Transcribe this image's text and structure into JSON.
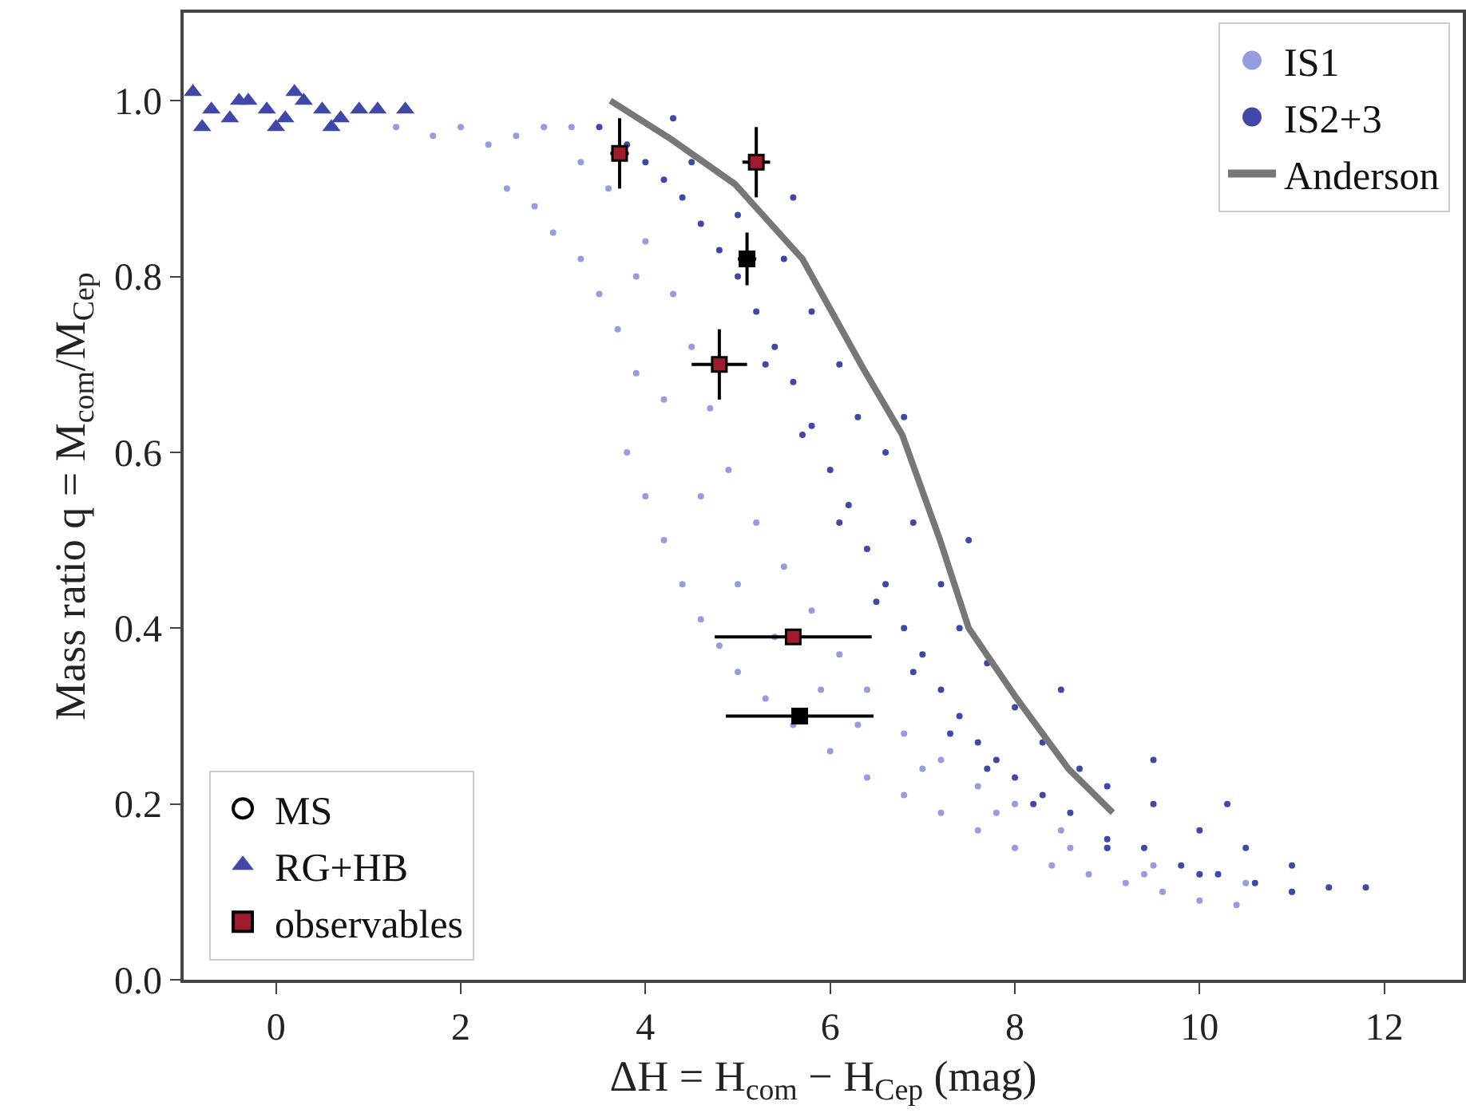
{
  "chart_data": {
    "type": "scatter",
    "xlabel": "ΔH = H$_{com}$ − H$_{Cep}$ (mag)",
    "ylabel": "Mass ratio q = M$_{com}$/M$_{Cep}$",
    "xlim": [
      -1,
      12.85
    ],
    "ylim": [
      0,
      1.1
    ],
    "xticks": [
      0,
      2,
      4,
      6,
      8,
      10,
      12
    ],
    "yticks": [
      {
        "value": 0,
        "label": "0.0"
      },
      {
        "value": 0.2,
        "label": "0.2"
      },
      {
        "value": 0.4,
        "label": "0.4"
      },
      {
        "value": 0.6,
        "label": "0.6"
      },
      {
        "value": 0.8,
        "label": "0.8"
      },
      {
        "value": 1,
        "label": "1.0"
      }
    ],
    "grid": false,
    "legend": "top right",
    "annotations": [
      "MS"
    ],
    "series": [
      {
        "name": "IS1",
        "marker": "circle",
        "color": "#959ce0",
        "x": [
          1.3,
          1.7,
          2.0,
          2.3,
          2.6,
          2.9,
          3.2,
          2.5,
          2.8,
          3.0,
          3.3,
          3.5,
          3.7,
          3.9,
          3.8,
          4.0,
          4.2,
          4.4,
          4.6,
          4.8,
          5.0,
          5.3,
          5.6,
          6.0,
          6.4,
          6.8,
          7.2,
          7.6,
          8.0,
          8.4,
          8.8,
          9.2,
          9.6,
          10.0,
          10.4,
          3.6,
          4.0,
          4.3,
          4.5,
          4.7,
          4.9,
          5.2,
          5.5,
          5.8,
          6.1,
          6.4,
          6.8,
          7.2,
          7.6,
          8.0,
          8.5,
          9.0,
          9.5,
          10.0,
          10.5,
          11.0,
          3.3,
          3.9,
          4.2,
          4.6,
          5.0,
          5.4,
          5.9,
          6.3,
          7.0,
          7.8,
          8.6,
          9.4
        ],
        "values": [
          0.97,
          0.96,
          0.97,
          0.95,
          0.96,
          0.97,
          0.97,
          0.9,
          0.88,
          0.85,
          0.82,
          0.78,
          0.74,
          0.69,
          0.6,
          0.55,
          0.5,
          0.45,
          0.41,
          0.38,
          0.35,
          0.32,
          0.29,
          0.26,
          0.23,
          0.21,
          0.19,
          0.17,
          0.15,
          0.13,
          0.12,
          0.11,
          0.1,
          0.09,
          0.085,
          0.9,
          0.84,
          0.78,
          0.72,
          0.65,
          0.58,
          0.52,
          0.47,
          0.42,
          0.37,
          0.33,
          0.28,
          0.25,
          0.22,
          0.2,
          0.17,
          0.15,
          0.13,
          0.12,
          0.11,
          0.1,
          0.93,
          0.8,
          0.66,
          0.55,
          0.45,
          0.39,
          0.33,
          0.29,
          0.24,
          0.19,
          0.15,
          0.12
        ]
      },
      {
        "name": "IS2+3",
        "marker": "circle",
        "color": "#3f48a8",
        "x": [
          3.5,
          3.8,
          4.0,
          4.2,
          4.4,
          4.6,
          4.8,
          5.0,
          5.2,
          5.4,
          5.6,
          5.8,
          6.0,
          6.2,
          6.4,
          6.6,
          6.8,
          7.0,
          7.2,
          7.4,
          7.6,
          7.8,
          8.0,
          8.3,
          8.6,
          9.0,
          9.4,
          9.8,
          10.2,
          10.6,
          11.0,
          11.4,
          11.8,
          4.5,
          5.0,
          5.5,
          5.8,
          6.1,
          6.3,
          6.6,
          6.9,
          7.2,
          7.4,
          7.7,
          8.0,
          8.3,
          8.7,
          9.0,
          9.5,
          10.0,
          10.5,
          11.0,
          6.8,
          7.5,
          8.5,
          9.5,
          10.3,
          5.6,
          4.3,
          5.3,
          5.7,
          6.1,
          6.5,
          6.9,
          7.3,
          7.7,
          8.2,
          9.0,
          10.0
        ],
        "values": [
          0.97,
          0.95,
          0.93,
          0.91,
          0.89,
          0.86,
          0.83,
          0.8,
          0.76,
          0.72,
          0.68,
          0.63,
          0.58,
          0.54,
          0.49,
          0.45,
          0.4,
          0.37,
          0.33,
          0.3,
          0.27,
          0.25,
          0.23,
          0.21,
          0.19,
          0.16,
          0.15,
          0.13,
          0.12,
          0.11,
          0.1,
          0.105,
          0.105,
          0.93,
          0.87,
          0.82,
          0.76,
          0.7,
          0.64,
          0.6,
          0.52,
          0.45,
          0.4,
          0.36,
          0.31,
          0.27,
          0.24,
          0.22,
          0.2,
          0.17,
          0.15,
          0.13,
          0.64,
          0.5,
          0.33,
          0.25,
          0.2,
          0.89,
          0.98,
          0.7,
          0.62,
          0.52,
          0.43,
          0.35,
          0.28,
          0.24,
          0.2,
          0.15,
          0.12
        ]
      },
      {
        "name": "Anderson",
        "type": "line",
        "color": "#777777",
        "line_style": "solid",
        "x": [
          3.62,
          4.28,
          4.97,
          5.7,
          6.36,
          6.78,
          7.19,
          7.5,
          8.02,
          8.58,
          9.06
        ],
        "values": [
          1.0,
          0.956,
          0.905,
          0.82,
          0.695,
          0.62,
          0.5,
          0.4,
          0.32,
          0.24,
          0.19
        ]
      },
      {
        "name": "RG+HB",
        "marker": "triangle",
        "color": "#3f48a8",
        "x": [
          -0.9,
          -0.7,
          -0.5,
          -0.3,
          -0.1,
          0.1,
          0.3,
          0.5,
          0.7,
          0.9,
          1.1,
          1.4,
          -0.8,
          0.2,
          0.6,
          0.0,
          -0.4
        ],
        "values": [
          1.01,
          0.99,
          0.98,
          1.0,
          0.99,
          0.98,
          1.0,
          0.99,
          0.98,
          0.99,
          0.99,
          0.99,
          0.97,
          1.01,
          0.97,
          0.97,
          1.0
        ]
      },
      {
        "name": "observables",
        "marker": "square",
        "color": "#000000",
        "colors": [
          "#a01c2c",
          "#a01c2c",
          "#000000",
          "#a01c2c",
          "#a01c2c",
          "#000000"
        ],
        "x": [
          3.72,
          5.2,
          5.1,
          4.8,
          5.6,
          5.67
        ],
        "values": [
          0.94,
          0.93,
          0.82,
          0.7,
          0.39,
          0.3
        ],
        "errors": [
          0.04,
          0.04,
          0.03,
          0.04,
          null,
          null
        ],
        "xerrors": [
          0.1,
          0.15,
          0.1,
          0.3,
          0.85,
          0.8
        ]
      }
    ]
  }
}
